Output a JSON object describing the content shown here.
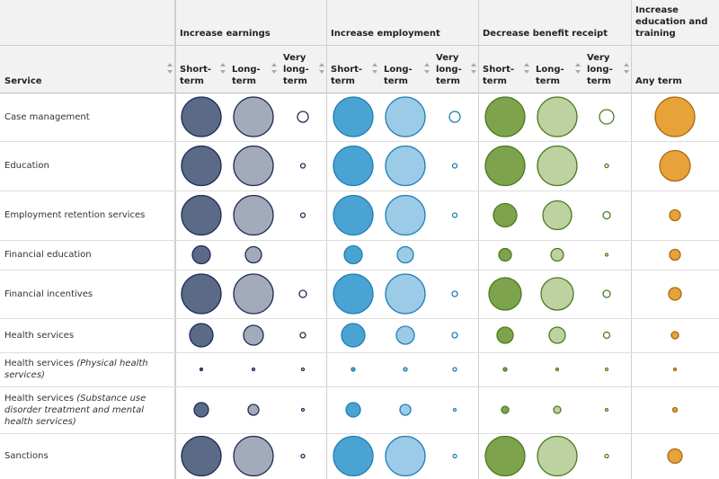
{
  "header": {
    "service": "Service",
    "groups": [
      "Increase earnings",
      "Increase employment",
      "Decrease benefit receipt",
      "Increase education and training"
    ],
    "subcolumns": [
      "Short-term",
      "Long-term",
      "Very long-term",
      "Short-term",
      "Long-term",
      "Very long-term",
      "Short-term",
      "Long-term",
      "Very long-term",
      "Any term"
    ]
  },
  "rows": [
    {
      "name": "Case management",
      "values": [
        44,
        44,
        12,
        44,
        44,
        12,
        44,
        44,
        16,
        44
      ]
    },
    {
      "name": "Education",
      "values": [
        44,
        44,
        5,
        44,
        44,
        5,
        44,
        44,
        4,
        34
      ]
    },
    {
      "name": "Employment retention services",
      "values": [
        44,
        44,
        5,
        44,
        44,
        5,
        26,
        32,
        8,
        12
      ]
    },
    {
      "name": "Financial education",
      "values": [
        20,
        18,
        null,
        20,
        18,
        null,
        14,
        14,
        3,
        12
      ]
    },
    {
      "name": "Financial incentives",
      "values": [
        44,
        44,
        8,
        44,
        44,
        6,
        36,
        36,
        8,
        14
      ]
    },
    {
      "name": "Health services",
      "values": [
        26,
        22,
        6,
        26,
        20,
        6,
        18,
        18,
        7,
        8
      ]
    },
    {
      "name": "Health services",
      "note": "(Physical health services)",
      "values": [
        3,
        3,
        3,
        4,
        4,
        4,
        4,
        3,
        3,
        3
      ]
    },
    {
      "name": "Health services",
      "note": "(Substance use disorder treatment and mental health services)",
      "values": [
        16,
        12,
        3,
        16,
        12,
        3,
        8,
        8,
        3,
        5
      ]
    },
    {
      "name": "Sanctions",
      "values": [
        44,
        44,
        4,
        44,
        44,
        4,
        44,
        44,
        4,
        16
      ]
    }
  ]
}
